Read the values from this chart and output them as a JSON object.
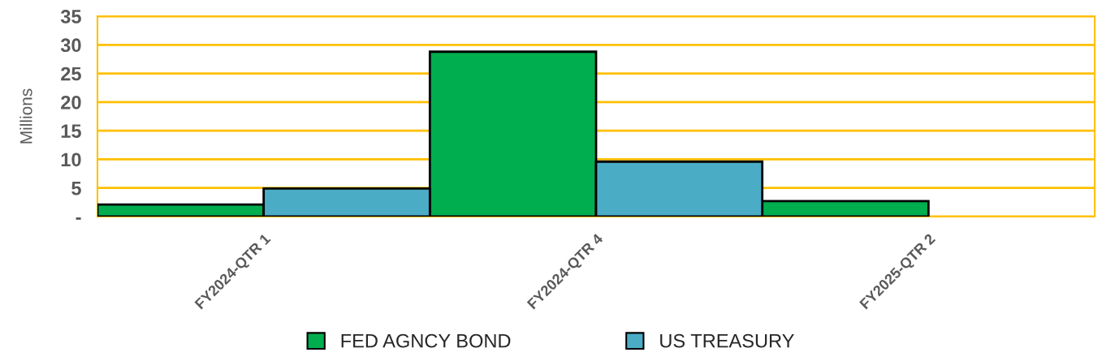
{
  "chart_data": {
    "type": "bar",
    "ylabel": "Millions",
    "categories": [
      "FY2024-QTR 1",
      "FY2024-QTR 4",
      "FY2025-QTR 2"
    ],
    "series": [
      {
        "name": "FED AGNCY BOND",
        "color": "#00ad4f",
        "values": [
          2.1,
          28.8,
          2.7
        ]
      },
      {
        "name": "US TREASURY",
        "color": "#4bacc6",
        "values": [
          4.9,
          9.6,
          null
        ]
      }
    ],
    "ylim": [
      0,
      35
    ],
    "yticks": [
      {
        "value": 0,
        "label": "-"
      },
      5,
      10,
      15,
      20,
      25,
      30,
      35
    ],
    "grid": "y",
    "legend": "bottom"
  }
}
